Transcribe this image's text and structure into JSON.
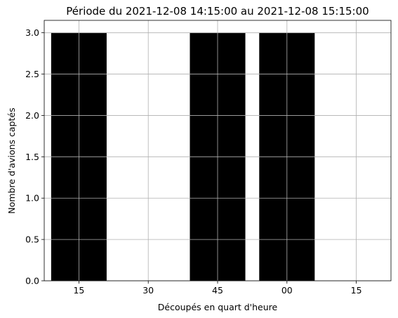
{
  "chart_data": {
    "type": "bar",
    "title": "Période du 2021-12-08 14:15:00 au 2021-12-08 15:15:00",
    "xlabel": "Découpés en quart d'heure",
    "ylabel": "Nombre d'avions captés",
    "categories": [
      "15",
      "30",
      "45",
      "00",
      "15"
    ],
    "values": [
      3,
      0,
      3,
      3,
      0
    ],
    "ylim": [
      0,
      3.15
    ],
    "yticks": [
      "0.0",
      "0.5",
      "1.0",
      "1.5",
      "2.0",
      "2.5",
      "3.0"
    ],
    "grid": true,
    "bar_color": "#000000",
    "grid_color": "#b0b0b0"
  }
}
